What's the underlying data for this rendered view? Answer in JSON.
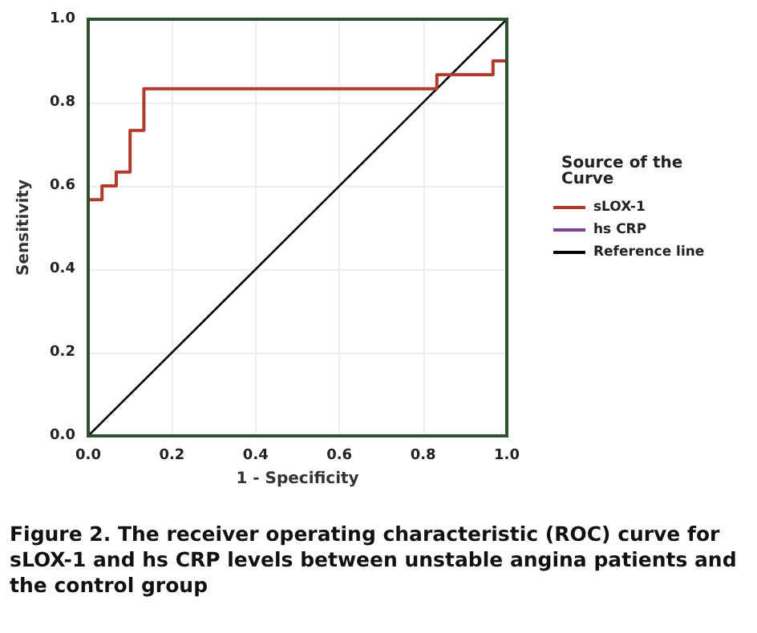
{
  "chart_data": {
    "type": "step",
    "xlabel": "1 - Specificity",
    "ylabel": "Sensitivity",
    "legend_title": "Source of the Curve",
    "series": [
      {
        "name": "sLOX-1",
        "color": "#b03a2e",
        "x": [
          0,
          0.033,
          0.067,
          0.1,
          0.133,
          0.833,
          0.967,
          1
        ],
        "values": [
          0.567,
          0.6,
          0.633,
          0.733,
          0.833,
          0.867,
          0.9,
          1
        ]
      },
      {
        "name": "hs CRP",
        "color": "#7b3f9e"
      },
      {
        "name": "Reference line",
        "type": "line",
        "color": "#000000",
        "x": [
          0,
          1
        ],
        "values": [
          0,
          1
        ]
      }
    ],
    "xlim": [
      0,
      1
    ],
    "ylim": [
      0,
      1
    ],
    "xticks": [
      {
        "value": 0,
        "label": "0.0"
      },
      {
        "value": 0.2,
        "label": "0.2"
      },
      {
        "value": 0.4,
        "label": "0.4"
      },
      {
        "value": 0.6,
        "label": "0.6"
      },
      {
        "value": 0.8,
        "label": "0.8"
      },
      {
        "value": 1,
        "label": "1.0"
      }
    ],
    "yticks": [
      {
        "value": 0,
        "label": "0.0"
      },
      {
        "value": 0.2,
        "label": "0.2"
      },
      {
        "value": 0.4,
        "label": "0.4"
      },
      {
        "value": 0.6,
        "label": "0.6"
      },
      {
        "value": 0.8,
        "label": "0.8"
      },
      {
        "value": 1,
        "label": "1.0"
      }
    ],
    "grid": true,
    "legend": "right",
    "marker": "none",
    "line_style": "solid",
    "annotations": [
      "Figure 2. The receiver operating characteristic (ROC) curve for sLOX-1 and hs CRP levels between unstable angina patients and the control group"
    ]
  }
}
